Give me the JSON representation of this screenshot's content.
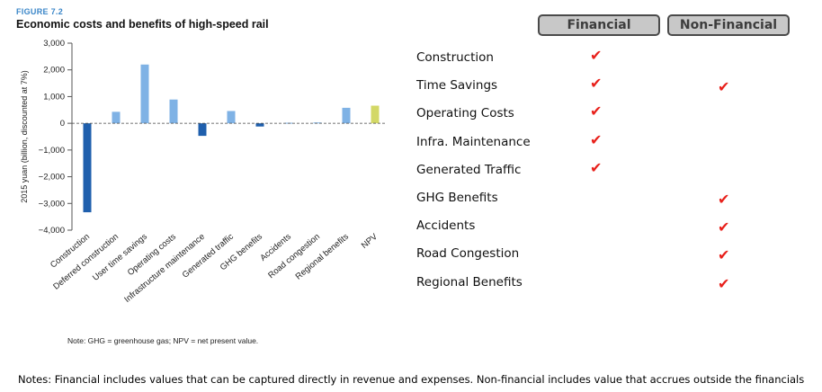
{
  "figure": {
    "label": "FIGURE 7.2",
    "title": "Economic costs and benefits of high-speed rail",
    "note": "Note: GHG = greenhouse gas; NPV = net present value."
  },
  "chart_data": {
    "type": "bar",
    "categories": [
      "Construction",
      "Deferred construction",
      "User time savings",
      "Operating costs",
      "Infrastructure maintenance",
      "Generated traffic",
      "GHG benefits",
      "Accidents",
      "Road congestion",
      "Regional benefits",
      "NPV"
    ],
    "values": [
      -3330,
      430,
      2200,
      890,
      -470,
      460,
      -120,
      20,
      30,
      580,
      660
    ],
    "bar_colors": [
      "#1f5fad",
      "#7fb2e5",
      "#7fb2e5",
      "#7fb2e5",
      "#1f5fad",
      "#7fb2e5",
      "#1f5fad",
      "#7fb2e5",
      "#7fb2e5",
      "#7fb2e5",
      "#d3d866"
    ],
    "ylabel": "2015 yuan (billion, discounted at 7%)",
    "ylim": [
      -4000,
      3000
    ],
    "yticks": [
      3000,
      2000,
      1000,
      0,
      -1000,
      -2000,
      -3000,
      -4000
    ],
    "ytick_labels": [
      "3,000",
      "2,000",
      "1,000",
      "0",
      "−1,000",
      "−2,000",
      "−3,000",
      "−4,000"
    ],
    "zero_line": "dashed",
    "grid": false
  },
  "benefits_table": {
    "columns": {
      "financial": "Financial",
      "non_financial": "Non-Financial"
    },
    "check_mark": "✔",
    "check_color": "#e8211c",
    "rows": [
      {
        "label": "Construction",
        "financial": true,
        "non_financial": false
      },
      {
        "label": "Time Savings",
        "financial": true,
        "non_financial": true
      },
      {
        "label": "Operating Costs",
        "financial": true,
        "non_financial": false
      },
      {
        "label": "Infra. Maintenance",
        "financial": true,
        "non_financial": false
      },
      {
        "label": "Generated Traffic",
        "financial": true,
        "non_financial": false
      },
      {
        "label": "GHG Benefits",
        "financial": false,
        "non_financial": true
      },
      {
        "label": "Accidents",
        "financial": false,
        "non_financial": true
      },
      {
        "label": "Road Congestion",
        "financial": false,
        "non_financial": true
      },
      {
        "label": "Regional Benefits",
        "financial": false,
        "non_financial": true
      }
    ]
  },
  "footer": {
    "notes": "Notes: Financial includes values that can be captured directly in revenue and expenses. Non-financial includes value that accrues outside the financials"
  }
}
